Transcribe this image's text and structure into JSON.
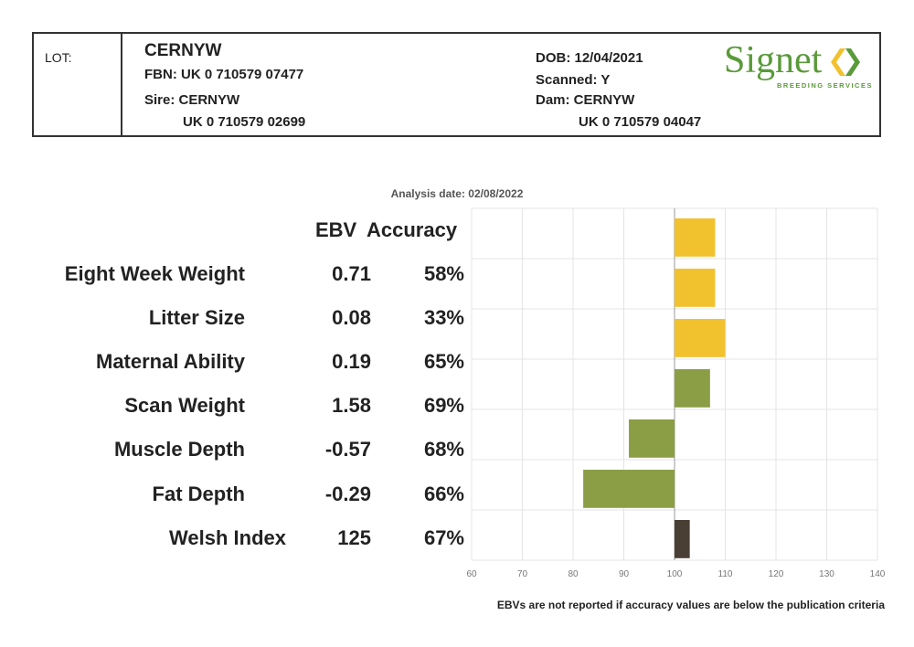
{
  "header": {
    "lot_label": "LOT:",
    "name": "CERNYW",
    "fbn": "FBN: UK 0 710579 07477",
    "sire": "Sire: CERNYW",
    "sire_id": "UK 0 710579 02699",
    "dob": "DOB: 12/04/2021",
    "scanned": "Scanned: Y",
    "dam": "Dam: CERNYW",
    "dam_id": "UK 0 710579 04047",
    "logo_main": "Signet",
    "logo_sub": "BREEDING SERVICES",
    "logo_color": "#5a9a3a"
  },
  "analysis_date": "Analysis date: 02/08/2022",
  "columns": {
    "ebv": "EBV",
    "accuracy": "Accuracy"
  },
  "footnote": "EBVs are not reported if accuracy values are below the publication criteria",
  "rows": [
    {
      "label": "Eight Week Weight",
      "ebv": "0.71",
      "accuracy": "58%"
    },
    {
      "label": "Litter Size",
      "ebv": "0.08",
      "accuracy": "33%"
    },
    {
      "label": "Maternal Ability",
      "ebv": "0.19",
      "accuracy": "65%"
    },
    {
      "label": "Scan Weight",
      "ebv": "1.58",
      "accuracy": "69%"
    },
    {
      "label": "Muscle Depth",
      "ebv": "-0.57",
      "accuracy": "68%"
    },
    {
      "label": "Fat Depth",
      "ebv": "-0.29",
      "accuracy": "66%"
    },
    {
      "label": "Welsh Index",
      "ebv": "125",
      "accuracy": "67%"
    }
  ],
  "chart_data": {
    "type": "bar",
    "orientation": "horizontal",
    "baseline": 100,
    "xlim": [
      60,
      140
    ],
    "xticks": [
      "60",
      "70",
      "80",
      "90",
      "100",
      "110",
      "120",
      "130",
      "140"
    ],
    "grid": true,
    "categories": [
      "Eight Week Weight",
      "Litter Size",
      "Maternal Ability",
      "Scan Weight",
      "Muscle Depth",
      "Fat Depth",
      "Welsh Index"
    ],
    "values": [
      108,
      108,
      110,
      107,
      91,
      82,
      103
    ],
    "colors": [
      "#f2c12e",
      "#f2c12e",
      "#f2c12e",
      "#8b9e45",
      "#8b9e45",
      "#8b9e45",
      "#4a3f35"
    ]
  }
}
